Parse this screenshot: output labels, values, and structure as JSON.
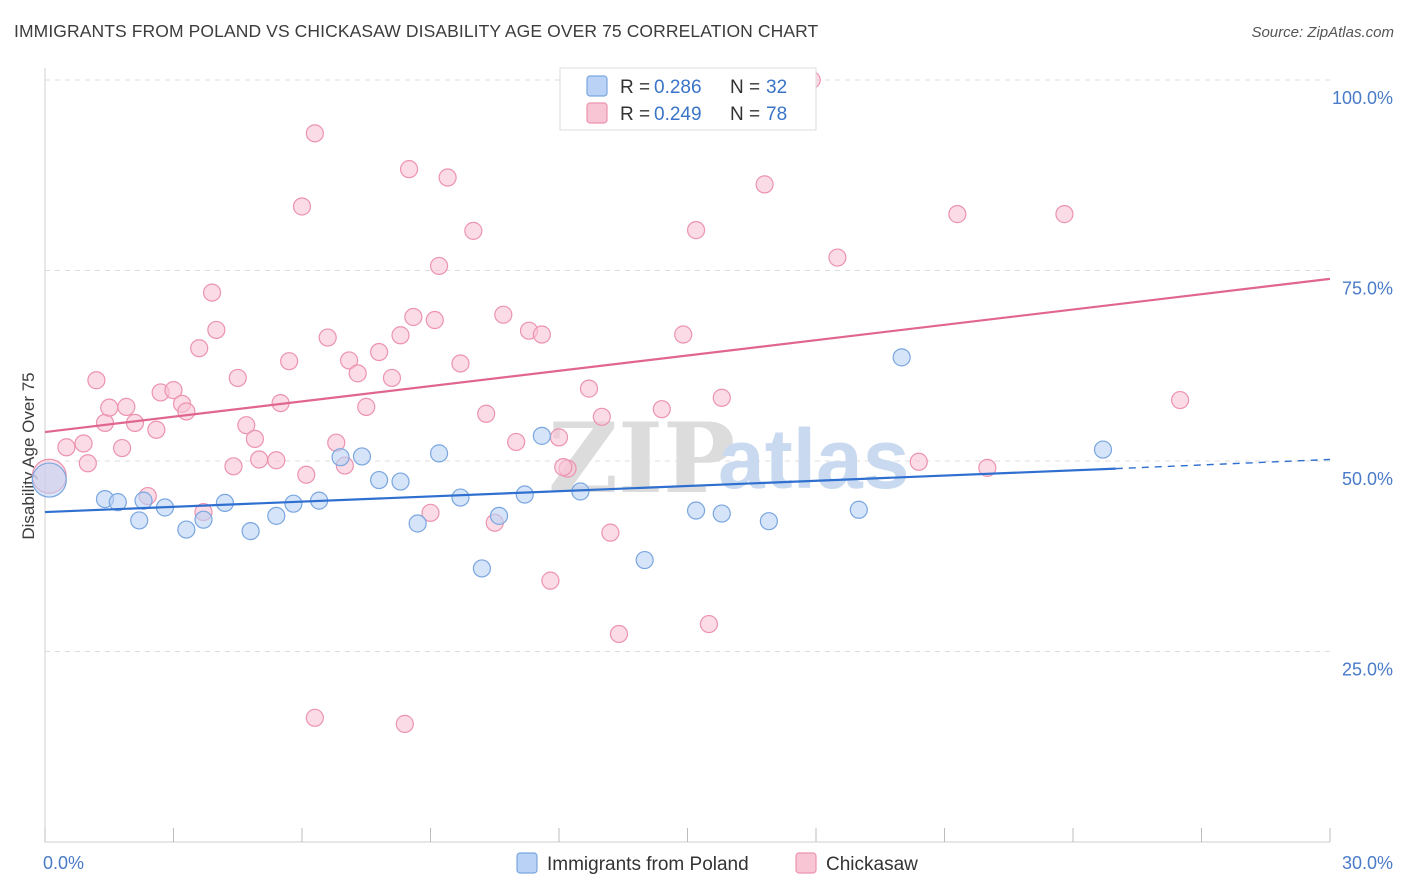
{
  "header": {
    "title": "IMMIGRANTS FROM POLAND VS CHICKASAW DISABILITY AGE OVER 75 CORRELATION CHART",
    "source": "Source: ZipAtlas.com"
  },
  "watermark": {
    "zip": "ZIP",
    "atlas": "atlas"
  },
  "colors": {
    "poland_fill": "#b9d2f5",
    "poland_stroke": "#7aa6e0",
    "poland_line": "#2f6fcf",
    "chickasaw_fill": "#f8c5d5",
    "chickasaw_stroke": "#ec93ae",
    "chickasaw_line": "#e0668f",
    "tick_text": "#4a7bc8",
    "grid": "#dddddd"
  },
  "chart_data": {
    "type": "scatter",
    "title": "IMMIGRANTS FROM POLAND VS CHICKASAW DISABILITY AGE OVER 75 CORRELATION CHART",
    "ylabel": "Disability Age Over 75",
    "xlabel": "",
    "xlim": [
      0,
      30
    ],
    "ylim": [
      0,
      100
    ],
    "x_tick_labels": [
      "0.0%",
      "30.0%"
    ],
    "y_tick_labels": [
      "100.0%",
      "75.0%",
      "50.0%",
      "25.0%"
    ],
    "y_tick_values": [
      100,
      75,
      50,
      25
    ],
    "grid": "horizontal dashed",
    "legend": [
      {
        "series": "Immigrants from Poland",
        "r_label": "R =",
        "r_value": "0.286",
        "n_label": "N =",
        "n_value": "32"
      },
      {
        "series": "Chickasaw",
        "r_label": "R =",
        "r_value": "0.249",
        "n_label": "N =",
        "n_value": "78"
      }
    ],
    "series": [
      {
        "name": "Immigrants from Poland",
        "trend": {
          "x0": 0,
          "y0": 43.3,
          "x1": 25.0,
          "y1": 49.0,
          "x_dashed_end": 30,
          "y_dashed_end": 50.2
        },
        "points": [
          {
            "x": 0.1,
            "y": 47.5,
            "big": true
          },
          {
            "x": 1.4,
            "y": 45.0
          },
          {
            "x": 1.7,
            "y": 44.6
          },
          {
            "x": 2.3,
            "y": 44.8
          },
          {
            "x": 2.2,
            "y": 42.2
          },
          {
            "x": 2.8,
            "y": 43.9
          },
          {
            "x": 3.3,
            "y": 41.0
          },
          {
            "x": 3.7,
            "y": 42.3
          },
          {
            "x": 4.2,
            "y": 44.5
          },
          {
            "x": 4.8,
            "y": 40.8
          },
          {
            "x": 5.4,
            "y": 42.8
          },
          {
            "x": 5.8,
            "y": 44.4
          },
          {
            "x": 6.4,
            "y": 44.8
          },
          {
            "x": 6.9,
            "y": 50.5
          },
          {
            "x": 7.4,
            "y": 50.6
          },
          {
            "x": 7.8,
            "y": 47.5
          },
          {
            "x": 8.3,
            "y": 47.3
          },
          {
            "x": 8.7,
            "y": 41.8
          },
          {
            "x": 9.2,
            "y": 51.0
          },
          {
            "x": 9.7,
            "y": 45.2
          },
          {
            "x": 10.2,
            "y": 35.9
          },
          {
            "x": 10.6,
            "y": 42.8
          },
          {
            "x": 11.2,
            "y": 45.6
          },
          {
            "x": 11.6,
            "y": 53.3
          },
          {
            "x": 12.5,
            "y": 46.0
          },
          {
            "x": 14.0,
            "y": 37.0
          },
          {
            "x": 15.2,
            "y": 43.5
          },
          {
            "x": 15.8,
            "y": 43.1
          },
          {
            "x": 16.9,
            "y": 42.1
          },
          {
            "x": 19.0,
            "y": 43.6
          },
          {
            "x": 20.0,
            "y": 63.6
          },
          {
            "x": 24.7,
            "y": 51.5
          }
        ]
      },
      {
        "name": "Chickasaw",
        "trend": {
          "x0": 0,
          "y0": 53.8,
          "x1": 30,
          "y1": 73.9
        },
        "points": [
          {
            "x": 0.1,
            "y": 48.0,
            "big": true
          },
          {
            "x": 0.5,
            "y": 51.8
          },
          {
            "x": 0.9,
            "y": 52.3
          },
          {
            "x": 1.0,
            "y": 49.7
          },
          {
            "x": 1.2,
            "y": 60.6
          },
          {
            "x": 1.4,
            "y": 55.0
          },
          {
            "x": 1.5,
            "y": 57.0
          },
          {
            "x": 1.8,
            "y": 51.7
          },
          {
            "x": 1.9,
            "y": 57.1
          },
          {
            "x": 2.1,
            "y": 55.0
          },
          {
            "x": 2.4,
            "y": 45.4
          },
          {
            "x": 2.6,
            "y": 54.1
          },
          {
            "x": 2.7,
            "y": 59.0
          },
          {
            "x": 3.0,
            "y": 59.3
          },
          {
            "x": 3.2,
            "y": 57.5
          },
          {
            "x": 3.3,
            "y": 56.5
          },
          {
            "x": 3.6,
            "y": 64.8
          },
          {
            "x": 3.7,
            "y": 43.3
          },
          {
            "x": 3.9,
            "y": 72.1
          },
          {
            "x": 4.0,
            "y": 67.2
          },
          {
            "x": 4.4,
            "y": 49.3
          },
          {
            "x": 4.5,
            "y": 60.9
          },
          {
            "x": 4.7,
            "y": 54.7
          },
          {
            "x": 4.9,
            "y": 52.9
          },
          {
            "x": 5.0,
            "y": 50.2
          },
          {
            "x": 5.4,
            "y": 50.1
          },
          {
            "x": 5.5,
            "y": 57.6
          },
          {
            "x": 5.7,
            "y": 63.1
          },
          {
            "x": 6.0,
            "y": 83.4
          },
          {
            "x": 6.1,
            "y": 48.2
          },
          {
            "x": 6.3,
            "y": 93.0
          },
          {
            "x": 6.6,
            "y": 66.2
          },
          {
            "x": 6.8,
            "y": 52.4
          },
          {
            "x": 7.0,
            "y": 49.4
          },
          {
            "x": 7.1,
            "y": 63.2
          },
          {
            "x": 7.3,
            "y": 61.5
          },
          {
            "x": 7.5,
            "y": 57.1
          },
          {
            "x": 7.8,
            "y": 64.3
          },
          {
            "x": 8.1,
            "y": 60.9
          },
          {
            "x": 8.3,
            "y": 66.5
          },
          {
            "x": 8.5,
            "y": 88.3
          },
          {
            "x": 8.6,
            "y": 68.9
          },
          {
            "x": 9.1,
            "y": 68.5
          },
          {
            "x": 9.2,
            "y": 75.6
          },
          {
            "x": 9.4,
            "y": 87.2
          },
          {
            "x": 9.7,
            "y": 62.8
          },
          {
            "x": 10.0,
            "y": 80.2
          },
          {
            "x": 10.3,
            "y": 56.2
          },
          {
            "x": 10.7,
            "y": 69.2
          },
          {
            "x": 11.0,
            "y": 52.5
          },
          {
            "x": 11.3,
            "y": 67.1
          },
          {
            "x": 11.6,
            "y": 66.6
          },
          {
            "x": 11.8,
            "y": 34.3
          },
          {
            "x": 12.0,
            "y": 53.1
          },
          {
            "x": 12.2,
            "y": 49.0
          },
          {
            "x": 12.7,
            "y": 59.5
          },
          {
            "x": 13.0,
            "y": 55.8
          },
          {
            "x": 13.2,
            "y": 40.6
          },
          {
            "x": 13.4,
            "y": 27.3
          },
          {
            "x": 14.4,
            "y": 56.8
          },
          {
            "x": 14.9,
            "y": 66.6
          },
          {
            "x": 15.2,
            "y": 80.3
          },
          {
            "x": 15.5,
            "y": 28.6
          },
          {
            "x": 15.8,
            "y": 58.3
          },
          {
            "x": 16.3,
            "y": 100.0
          },
          {
            "x": 16.8,
            "y": 86.3
          },
          {
            "x": 17.9,
            "y": 100.0
          },
          {
            "x": 18.5,
            "y": 76.7
          },
          {
            "x": 20.4,
            "y": 49.9
          },
          {
            "x": 21.3,
            "y": 82.4
          },
          {
            "x": 22.0,
            "y": 49.1
          },
          {
            "x": 23.8,
            "y": 82.4
          },
          {
            "x": 26.5,
            "y": 58.0
          },
          {
            "x": 6.3,
            "y": 16.3
          },
          {
            "x": 8.4,
            "y": 15.5
          },
          {
            "x": 9.0,
            "y": 43.2
          },
          {
            "x": 10.5,
            "y": 41.9
          },
          {
            "x": 12.1,
            "y": 49.2
          }
        ]
      }
    ]
  }
}
